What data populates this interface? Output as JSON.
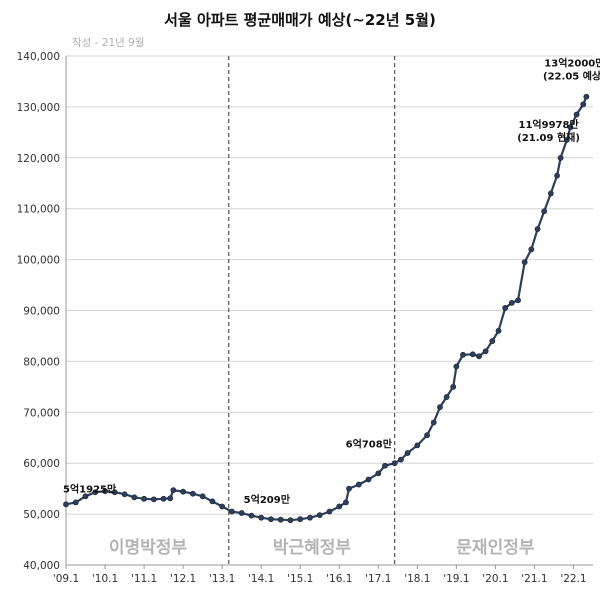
{
  "chart_data": {
    "type": "line",
    "title": "서울 아파트 평균매매가 예상(~22년 5월)",
    "subtitle": "작성 - 21년 9월",
    "ylim": [
      40000,
      140000
    ],
    "xlim": [
      2009.0,
      2022.5
    ],
    "yticks": [
      40000,
      50000,
      60000,
      70000,
      80000,
      90000,
      100000,
      110000,
      120000,
      130000,
      140000
    ],
    "ytick_labels": [
      "40,000",
      "50,000",
      "60,000",
      "70,000",
      "80,000",
      "90,000",
      "100,000",
      "110,000",
      "120,000",
      "130,000",
      "140,000"
    ],
    "xticks": [
      2009,
      2010,
      2011,
      2012,
      2013,
      2014,
      2015,
      2016,
      2017,
      2018,
      2019,
      2020,
      2021,
      2022
    ],
    "xtick_labels": [
      "'09.1",
      "'10.1",
      "'11.1",
      "'12.1",
      "'13.1",
      "'14.1",
      "'15.1",
      "'16.1",
      "'17.1",
      "'18.1",
      "'19.1",
      "'20.1",
      "'21.1",
      "'22.1"
    ],
    "eras": [
      {
        "label": "이명박정부",
        "x_center": 2011.1
      },
      {
        "label": "박근혜정부",
        "x_center": 2015.3
      },
      {
        "label": "문재인정부",
        "x_center": 2020.0
      }
    ],
    "era_dividers": [
      2013.17,
      2017.42
    ],
    "annotations": [
      {
        "lines": [
          "5억1925만"
        ],
        "x": 2009.0,
        "y": 51925
      },
      {
        "lines": [
          "5억209만"
        ],
        "x": 2013.5,
        "y": 50209
      },
      {
        "lines": [
          "6억708만"
        ],
        "x": 2017.4,
        "y": 60708
      },
      {
        "lines": [
          "11억9978만",
          "(21.09 현재)"
        ],
        "x": 2021.67,
        "y": 119978
      },
      {
        "lines": [
          "13억2000만",
          "(22.05 예상)"
        ],
        "x": 2022.33,
        "y": 132000
      }
    ],
    "series": [
      {
        "name": "서울 아파트 평균매매가 (만원)",
        "color": "#2e3f5c",
        "points": [
          [
            2009.0,
            51925
          ],
          [
            2009.25,
            52300
          ],
          [
            2009.5,
            53500
          ],
          [
            2009.75,
            54300
          ],
          [
            2010.0,
            54500
          ],
          [
            2010.25,
            54300
          ],
          [
            2010.5,
            53900
          ],
          [
            2010.75,
            53300
          ],
          [
            2011.0,
            53000
          ],
          [
            2011.25,
            52900
          ],
          [
            2011.5,
            53000
          ],
          [
            2011.67,
            53100
          ],
          [
            2011.75,
            54700
          ],
          [
            2012.0,
            54400
          ],
          [
            2012.25,
            54000
          ],
          [
            2012.5,
            53500
          ],
          [
            2012.75,
            52500
          ],
          [
            2013.0,
            51500
          ],
          [
            2013.25,
            50500
          ],
          [
            2013.5,
            50209
          ],
          [
            2013.75,
            49700
          ],
          [
            2014.0,
            49300
          ],
          [
            2014.25,
            49000
          ],
          [
            2014.5,
            48900
          ],
          [
            2014.75,
            48800
          ],
          [
            2015.0,
            49000
          ],
          [
            2015.25,
            49300
          ],
          [
            2015.5,
            49800
          ],
          [
            2015.75,
            50500
          ],
          [
            2016.0,
            51500
          ],
          [
            2016.17,
            52300
          ],
          [
            2016.25,
            55000
          ],
          [
            2016.5,
            55800
          ],
          [
            2016.75,
            56800
          ],
          [
            2017.0,
            58000
          ],
          [
            2017.17,
            59500
          ],
          [
            2017.42,
            60000
          ],
          [
            2017.58,
            60708
          ],
          [
            2017.75,
            62000
          ],
          [
            2018.0,
            63500
          ],
          [
            2018.25,
            65500
          ],
          [
            2018.42,
            68000
          ],
          [
            2018.58,
            71000
          ],
          [
            2018.75,
            73000
          ],
          [
            2018.92,
            75000
          ],
          [
            2019.0,
            79000
          ],
          [
            2019.17,
            81300
          ],
          [
            2019.42,
            81400
          ],
          [
            2019.58,
            81000
          ],
          [
            2019.75,
            82000
          ],
          [
            2019.92,
            84000
          ],
          [
            2020.08,
            86000
          ],
          [
            2020.25,
            90500
          ],
          [
            2020.42,
            91500
          ],
          [
            2020.58,
            92000
          ],
          [
            2020.75,
            99500
          ],
          [
            2020.92,
            102000
          ],
          [
            2021.08,
            106000
          ],
          [
            2021.25,
            109500
          ],
          [
            2021.42,
            113000
          ],
          [
            2021.58,
            116500
          ],
          [
            2021.67,
            119978
          ],
          [
            2021.83,
            123500
          ],
          [
            2021.92,
            126000
          ],
          [
            2022.08,
            128500
          ],
          [
            2022.25,
            130500
          ],
          [
            2022.33,
            132000
          ]
        ]
      }
    ]
  }
}
